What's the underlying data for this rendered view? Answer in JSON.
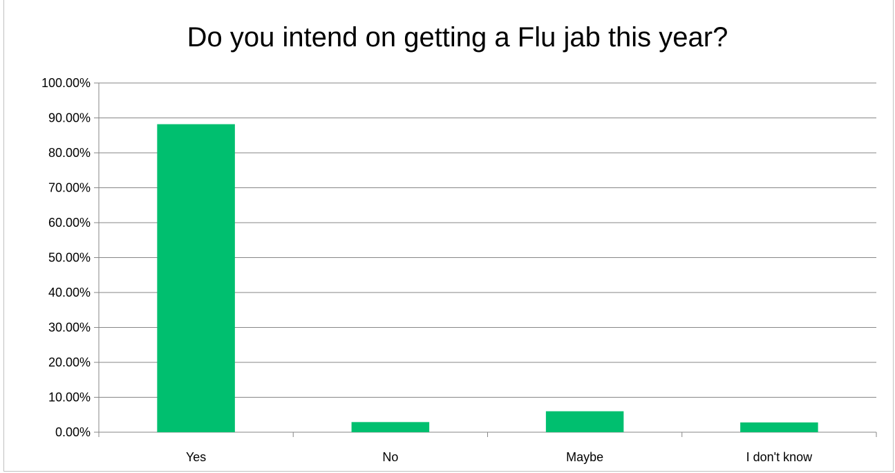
{
  "chart_data": {
    "type": "bar",
    "title": "Do you intend on getting a Flu jab this year?",
    "xlabel": "",
    "ylabel": "",
    "categories": [
      "Yes",
      "No",
      "Maybe",
      "I don't know"
    ],
    "values": [
      0.882,
      0.029,
      0.06,
      0.028
    ],
    "ylim": [
      0,
      1
    ],
    "yticks": [
      "0.00%",
      "10.00%",
      "20.00%",
      "30.00%",
      "40.00%",
      "50.00%",
      "60.00%",
      "70.00%",
      "80.00%",
      "90.00%",
      "100.00%"
    ],
    "grid": true,
    "legend": "none",
    "bar_color": "#00bf6f"
  }
}
